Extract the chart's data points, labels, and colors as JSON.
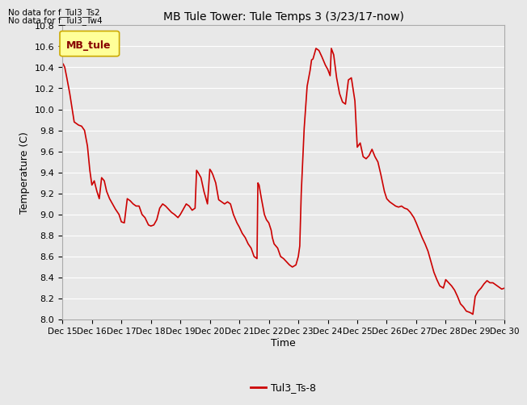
{
  "title": "MB Tule Tower: Tule Temps 3 (3/23/17-now)",
  "xlabel": "Time",
  "ylabel": "Temperature (C)",
  "line_color": "#cc0000",
  "line_label": "Tul3_Ts-8",
  "ylim": [
    8.0,
    10.8
  ],
  "yticks": [
    8.0,
    8.2,
    8.4,
    8.6,
    8.8,
    9.0,
    9.2,
    9.4,
    9.6,
    9.8,
    10.0,
    10.2,
    10.4,
    10.6,
    10.8
  ],
  "no_data_text1": "No data for f_Tul3_Ts2",
  "no_data_text2": "No data for f_Tul3_Tw4",
  "legend_box_label": "MB_tule",
  "legend_box_color": "#ffff99",
  "legend_box_edge": "#ccaa00",
  "background_color": "#e8e8e8",
  "plot_bg_color": "#e8e8e8",
  "grid_color": "#ffffff",
  "x_start": 15,
  "x_end": 30,
  "x_ticks": [
    15,
    16,
    17,
    18,
    19,
    20,
    21,
    22,
    23,
    24,
    25,
    26,
    27,
    28,
    29,
    30
  ],
  "x_tick_labels": [
    "Dec 15",
    "Dec 16",
    "Dec 17",
    "Dec 18",
    "Dec 19",
    "Dec 20",
    "Dec 21",
    "Dec 22",
    "Dec 23",
    "Dec 24",
    "Dec 25",
    "Dec 26",
    "Dec 27",
    "Dec 28",
    "Dec 29",
    "Dec 30"
  ],
  "curve_x": [
    15.0,
    15.03,
    15.08,
    15.15,
    15.25,
    15.4,
    15.55,
    15.65,
    15.75,
    15.85,
    15.93,
    16.0,
    16.08,
    16.17,
    16.25,
    16.33,
    16.42,
    16.5,
    16.6,
    16.7,
    16.8,
    16.92,
    17.0,
    17.1,
    17.2,
    17.3,
    17.4,
    17.5,
    17.6,
    17.7,
    17.8,
    17.92,
    18.0,
    18.1,
    18.2,
    18.3,
    18.4,
    18.5,
    18.6,
    18.7,
    18.8,
    18.92,
    19.0,
    19.1,
    19.2,
    19.3,
    19.4,
    19.5,
    19.55,
    19.6,
    19.7,
    19.8,
    19.92,
    20.0,
    20.05,
    20.1,
    20.2,
    20.3,
    20.4,
    20.5,
    20.6,
    20.7,
    20.8,
    20.92,
    21.0,
    21.1,
    21.2,
    21.3,
    21.4,
    21.5,
    21.6,
    21.63,
    21.67,
    21.75,
    21.85,
    21.92,
    22.0,
    22.08,
    22.12,
    22.18,
    22.3,
    22.4,
    22.5,
    22.6,
    22.7,
    22.8,
    22.92,
    23.0,
    23.05,
    23.1,
    23.2,
    23.3,
    23.4,
    23.45,
    23.5,
    23.6,
    23.7,
    23.8,
    23.92,
    24.0,
    24.08,
    24.12,
    24.2,
    24.3,
    24.4,
    24.5,
    24.6,
    24.7,
    24.8,
    24.92,
    25.0,
    25.1,
    25.2,
    25.3,
    25.4,
    25.5,
    25.6,
    25.7,
    25.8,
    25.92,
    26.0,
    26.1,
    26.2,
    26.3,
    26.4,
    26.5,
    26.6,
    26.7,
    26.8,
    26.92,
    27.0,
    27.1,
    27.2,
    27.3,
    27.4,
    27.5,
    27.6,
    27.7,
    27.8,
    27.92,
    28.0,
    28.1,
    28.2,
    28.3,
    28.4,
    28.5,
    28.6,
    28.65,
    28.7,
    28.8,
    28.87,
    28.92,
    29.0,
    29.1,
    29.2,
    29.3,
    29.4,
    29.5,
    29.6,
    29.7,
    29.8,
    29.9,
    30.0
  ],
  "curve_y": [
    10.44,
    10.43,
    10.4,
    10.3,
    10.15,
    9.88,
    9.85,
    9.84,
    9.8,
    9.65,
    9.42,
    9.28,
    9.32,
    9.22,
    9.15,
    9.35,
    9.32,
    9.22,
    9.15,
    9.1,
    9.05,
    9.0,
    8.93,
    8.92,
    9.15,
    9.13,
    9.1,
    9.08,
    9.08,
    9.0,
    8.97,
    8.9,
    8.89,
    8.9,
    8.95,
    9.06,
    9.1,
    9.08,
    9.05,
    9.02,
    9.0,
    8.97,
    9.0,
    9.05,
    9.1,
    9.08,
    9.04,
    9.06,
    9.42,
    9.4,
    9.35,
    9.22,
    9.1,
    9.43,
    9.41,
    9.38,
    9.3,
    9.14,
    9.12,
    9.1,
    9.12,
    9.1,
    9.0,
    8.92,
    8.88,
    8.82,
    8.78,
    8.72,
    8.68,
    8.6,
    8.58,
    9.3,
    9.28,
    9.15,
    9.0,
    8.95,
    8.92,
    8.85,
    8.78,
    8.72,
    8.68,
    8.6,
    8.58,
    8.55,
    8.52,
    8.5,
    8.52,
    8.6,
    8.7,
    9.2,
    9.82,
    10.22,
    10.37,
    10.47,
    10.48,
    10.58,
    10.56,
    10.5,
    10.42,
    10.38,
    10.32,
    10.58,
    10.52,
    10.3,
    10.15,
    10.07,
    10.05,
    10.28,
    10.3,
    10.08,
    9.64,
    9.68,
    9.55,
    9.53,
    9.56,
    9.62,
    9.55,
    9.5,
    9.38,
    9.22,
    9.15,
    9.12,
    9.1,
    9.08,
    9.07,
    9.08,
    9.06,
    9.05,
    9.02,
    8.97,
    8.92,
    8.85,
    8.78,
    8.72,
    8.65,
    8.55,
    8.45,
    8.38,
    8.32,
    8.3,
    8.38,
    8.35,
    8.32,
    8.28,
    8.22,
    8.15,
    8.12,
    8.1,
    8.08,
    8.07,
    8.06,
    8.05,
    8.22,
    8.27,
    8.3,
    8.34,
    8.37,
    8.35,
    8.35,
    8.33,
    8.31,
    8.29,
    8.3
  ]
}
